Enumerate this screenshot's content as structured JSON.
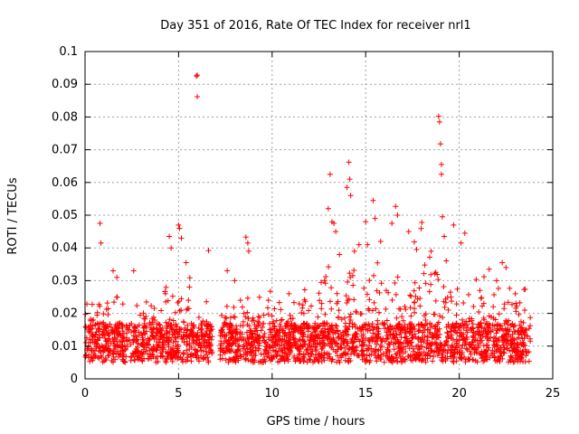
{
  "chart_data": {
    "type": "scatter",
    "title": "Day 351 of 2016, Rate Of TEC Index for receiver nrl1",
    "xlabel": "GPS time / hours",
    "ylabel": "ROTI / TECUs",
    "xlim": [
      0,
      25
    ],
    "ylim": [
      0,
      0.1
    ],
    "xticks": [
      0,
      5,
      10,
      15,
      20,
      25
    ],
    "yticks": [
      0,
      0.01,
      0.02,
      0.03,
      0.04,
      0.05,
      0.06,
      0.07,
      0.08,
      0.09,
      0.1
    ],
    "xtick_labels": [
      "0",
      "5",
      "10",
      "15",
      "20",
      "25"
    ],
    "ytick_labels": [
      "0",
      "0.01",
      "0.02",
      "0.03",
      "0.04",
      "0.05",
      "0.06",
      "0.07",
      "0.08",
      "0.09",
      "0.1"
    ],
    "grid": true,
    "marker": "+",
    "marker_color": "#ff0000",
    "series": [
      {
        "name": "nrl1",
        "points": [
          [
            0.8,
            0.0475
          ],
          [
            0.85,
            0.0415
          ],
          [
            1.5,
            0.033
          ],
          [
            1.7,
            0.031
          ],
          [
            2.6,
            0.033
          ],
          [
            4.5,
            0.0435
          ],
          [
            4.6,
            0.04
          ],
          [
            5.0,
            0.047
          ],
          [
            5.05,
            0.046
          ],
          [
            5.15,
            0.043
          ],
          [
            5.4,
            0.0355
          ],
          [
            5.95,
            0.0925
          ],
          [
            6.0,
            0.0928
          ],
          [
            6.0,
            0.0862
          ],
          [
            6.6,
            0.0392
          ],
          [
            7.6,
            0.033
          ],
          [
            8.0,
            0.03
          ],
          [
            8.6,
            0.0433
          ],
          [
            8.7,
            0.0415
          ],
          [
            8.75,
            0.039
          ],
          [
            9.8,
            0.024
          ],
          [
            10.9,
            0.026
          ],
          [
            12.8,
            0.03
          ],
          [
            13.0,
            0.052
          ],
          [
            13.1,
            0.0625
          ],
          [
            13.2,
            0.048
          ],
          [
            13.3,
            0.0475
          ],
          [
            13.4,
            0.045
          ],
          [
            13.6,
            0.038
          ],
          [
            14.0,
            0.0585
          ],
          [
            14.1,
            0.0662
          ],
          [
            14.15,
            0.061
          ],
          [
            14.2,
            0.056
          ],
          [
            14.4,
            0.039
          ],
          [
            15.0,
            0.048
          ],
          [
            15.1,
            0.041
          ],
          [
            15.4,
            0.0545
          ],
          [
            15.5,
            0.049
          ],
          [
            15.8,
            0.042
          ],
          [
            16.4,
            0.0475
          ],
          [
            16.6,
            0.0527
          ],
          [
            16.7,
            0.05
          ],
          [
            17.3,
            0.045
          ],
          [
            17.6,
            0.0418
          ],
          [
            18.0,
            0.0478
          ],
          [
            18.5,
            0.039
          ],
          [
            18.9,
            0.0802
          ],
          [
            18.95,
            0.0785
          ],
          [
            19.0,
            0.0718
          ],
          [
            19.05,
            0.0655
          ],
          [
            19.05,
            0.0625
          ],
          [
            19.1,
            0.0495
          ],
          [
            19.2,
            0.0435
          ],
          [
            19.7,
            0.047
          ],
          [
            20.1,
            0.0415
          ],
          [
            20.3,
            0.0445
          ],
          [
            21.6,
            0.0335
          ],
          [
            22.0,
            0.03
          ],
          [
            22.3,
            0.0355
          ],
          [
            22.5,
            0.034
          ],
          [
            23.0,
            0.026
          ],
          [
            23.5,
            0.021
          ]
        ]
      }
    ],
    "data_gap_hours": [
      6.8,
      7.2
    ],
    "baseline_band": [
      0.005,
      0.017
    ]
  }
}
